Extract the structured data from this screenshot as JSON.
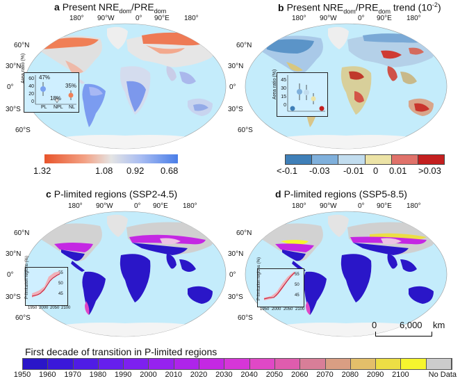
{
  "panels": {
    "a": {
      "letter": "a",
      "title": "Present NRE",
      "sub1": "dom",
      "mid": "/PRE",
      "sub2": "dom"
    },
    "b": {
      "letter": "b",
      "title": "Present NRE",
      "sub1": "dom",
      "mid": "/PRE",
      "sub2": "dom",
      "tail": " trend (10",
      "sup": "-2",
      "end": ")"
    },
    "c": {
      "letter": "c",
      "title": "P-limited regions (SSP2-4.5)"
    },
    "d": {
      "letter": "d",
      "title": "P-limited regions (SSP5-8.5)"
    }
  },
  "lon_ticks": [
    "180°",
    "90°W",
    "0°",
    "90°E",
    "180°"
  ],
  "lat_ticks": [
    "60°N",
    "30°N",
    "0°",
    "30°S",
    "60°S"
  ],
  "inset_a": {
    "ylabel": "Area ratio (%)",
    "yticks": [
      "0",
      "20",
      "40",
      "60"
    ],
    "categories": [
      "PL",
      "NPL",
      "NL"
    ],
    "values": [
      "47%",
      "18%",
      "35%"
    ]
  },
  "inset_b": {
    "ylabel": "Area ratio (%)",
    "yticks": [
      "0",
      "15",
      "30",
      "45"
    ]
  },
  "inset_cd": {
    "ylabel": "P-limitation regions (%)",
    "c_yticks": [
      "55",
      "50",
      "45"
    ],
    "d_yticks": [
      "55",
      "50",
      "45"
    ],
    "xticks": [
      "1950",
      "2000",
      "2050",
      "2100"
    ]
  },
  "colorbar_a": {
    "labels": [
      "1.32",
      "1.08",
      "0.92",
      "0.68"
    ]
  },
  "colorbar_b": {
    "labels": [
      "<-0.1",
      "-0.03",
      "-0.01",
      "0",
      "0.01",
      ">0.03"
    ],
    "colors": [
      "#3f7fb8",
      "#7fb0dc",
      "#c2ddef",
      "#ece3a6",
      "#e0726a",
      "#c41f1f"
    ]
  },
  "scale_bar": {
    "zero": "0",
    "distance": "6,000",
    "unit": "km"
  },
  "legend": {
    "title": "First decade of transition in P-limited regions",
    "labels": [
      "1950",
      "1960",
      "1970",
      "1980",
      "1990",
      "2000",
      "2010",
      "2020",
      "2030",
      "2040",
      "2050",
      "2060",
      "2070",
      "2080",
      "2090",
      "2100",
      "No Data"
    ],
    "colors": [
      "#2a16c8",
      "#3a18da",
      "#4f1ce6",
      "#661fee",
      "#7d20f0",
      "#9622ef",
      "#ae24ea",
      "#c428e3",
      "#d636d8",
      "#e048c6",
      "#df5cae",
      "#d87e98",
      "#d99e83",
      "#e3bf6a",
      "#ecde45",
      "#f6f52e",
      "#cccccc"
    ]
  }
}
